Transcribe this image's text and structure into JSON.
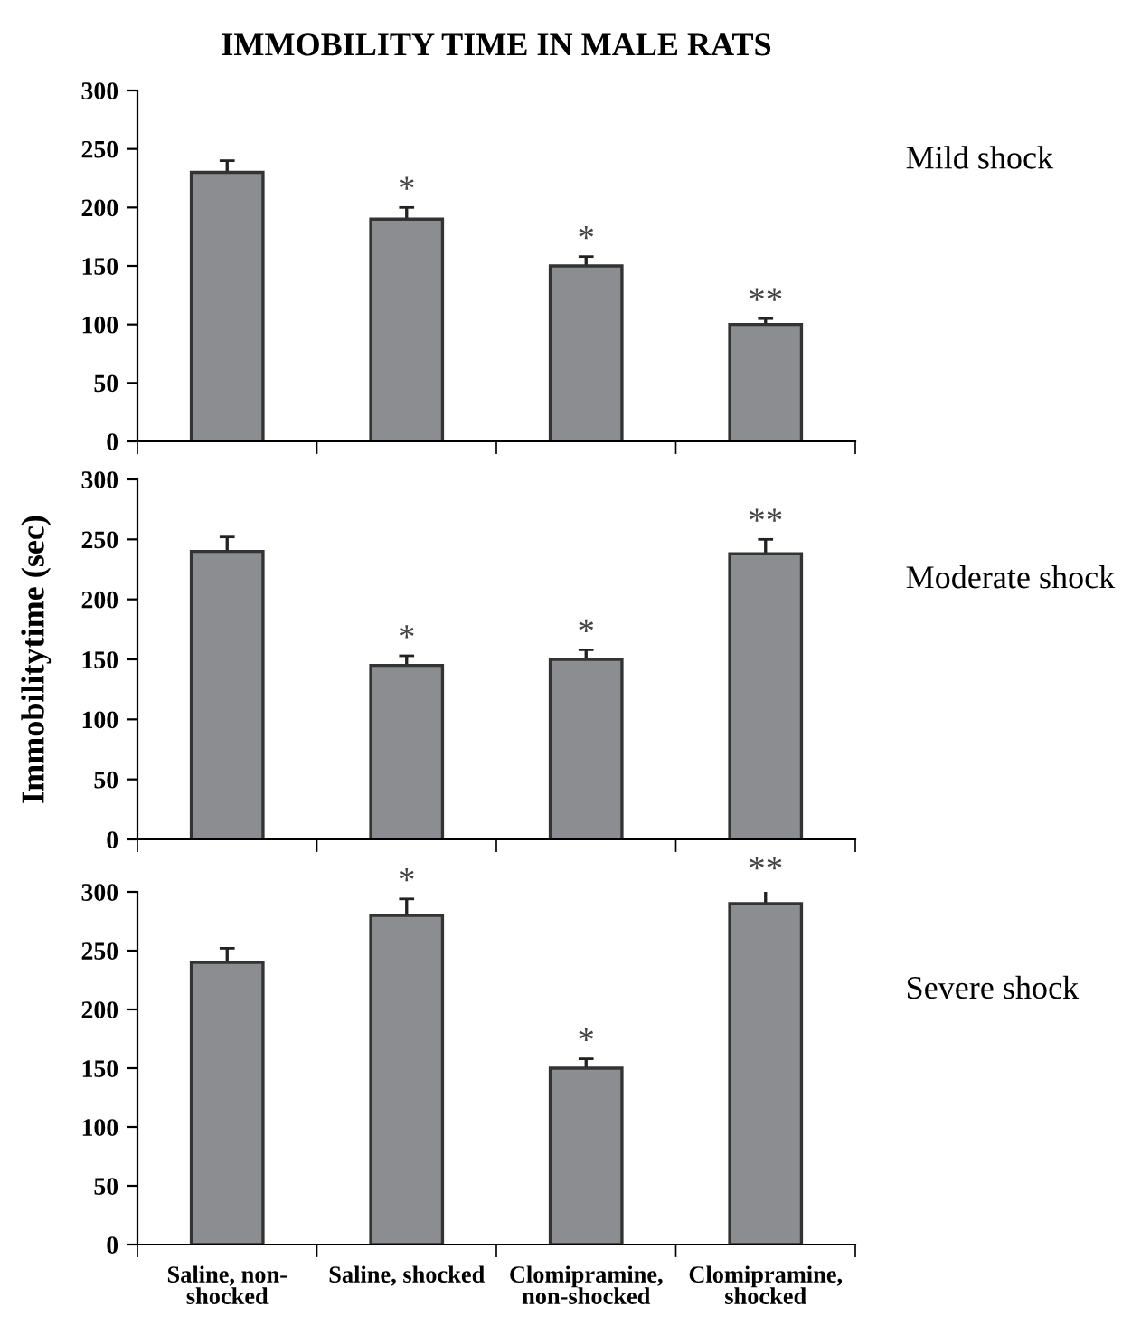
{
  "chart_data": [
    {
      "type": "bar",
      "title": "IMMOBILITY TIME IN MALE RATS",
      "categories": [
        "Saline, non-shocked",
        "Saline, shocked",
        "Clomipramine, non-shocked",
        "Clomipramine, shocked"
      ],
      "values": [
        230,
        190,
        150,
        100
      ],
      "errors": [
        10,
        10,
        8,
        5
      ],
      "color": "#8c8d91",
      "ylim": [
        0,
        300
      ],
      "yticks": [
        0,
        50,
        100,
        150,
        200,
        250,
        300
      ],
      "grid": false,
      "legend": false,
      "tick_labels": "y",
      "annotations": [
        {
          "text": "*",
          "x": "Saline, shocked",
          "y": 200
        },
        {
          "text": "*",
          "x": "Clomipramine, non-shocked",
          "y": 158
        },
        {
          "text": "**",
          "x": "Clomipramine, shocked",
          "y": 105
        },
        "Mild shock"
      ]
    },
    {
      "type": "bar",
      "ylabel": "Immobilitytime (sec)",
      "categories": [
        "Saline, non-shocked",
        "Saline, shocked",
        "Clomipramine, non-shocked",
        "Clomipramine, shocked"
      ],
      "values": [
        240,
        145,
        150,
        238
      ],
      "errors": [
        12,
        8,
        8,
        12
      ],
      "color": "#8c8d91",
      "ylim": [
        0,
        300
      ],
      "yticks": [
        0,
        50,
        100,
        150,
        200,
        250,
        300
      ],
      "grid": false,
      "legend": false,
      "tick_labels": "y",
      "annotations": [
        {
          "text": "*",
          "x": "Saline, shocked",
          "y": 153
        },
        {
          "text": "*",
          "x": "Clomipramine, non-shocked",
          "y": 158
        },
        {
          "text": "**",
          "x": "Clomipramine, shocked",
          "y": 250
        },
        "Moderate shock"
      ]
    },
    {
      "type": "bar",
      "categories": [
        "Saline, non-shocked",
        "Saline, shocked",
        "Clomipramine, non-shocked",
        "Clomipramine, shocked"
      ],
      "values": [
        240,
        280,
        150,
        290
      ],
      "errors": [
        12,
        14,
        8,
        14
      ],
      "color": "#8c8d91",
      "ylim": [
        0,
        300
      ],
      "yticks": [
        0,
        50,
        100,
        150,
        200,
        250,
        300
      ],
      "grid": false,
      "legend": false,
      "annotations": [
        {
          "text": "*",
          "x": "Saline, shocked",
          "y": 294
        },
        {
          "text": "*",
          "x": "Clomipramine, non-shocked",
          "y": 158
        },
        {
          "text": "**",
          "x": "Clomipramine, shocked",
          "y": 304
        },
        "Severe shock"
      ]
    }
  ]
}
